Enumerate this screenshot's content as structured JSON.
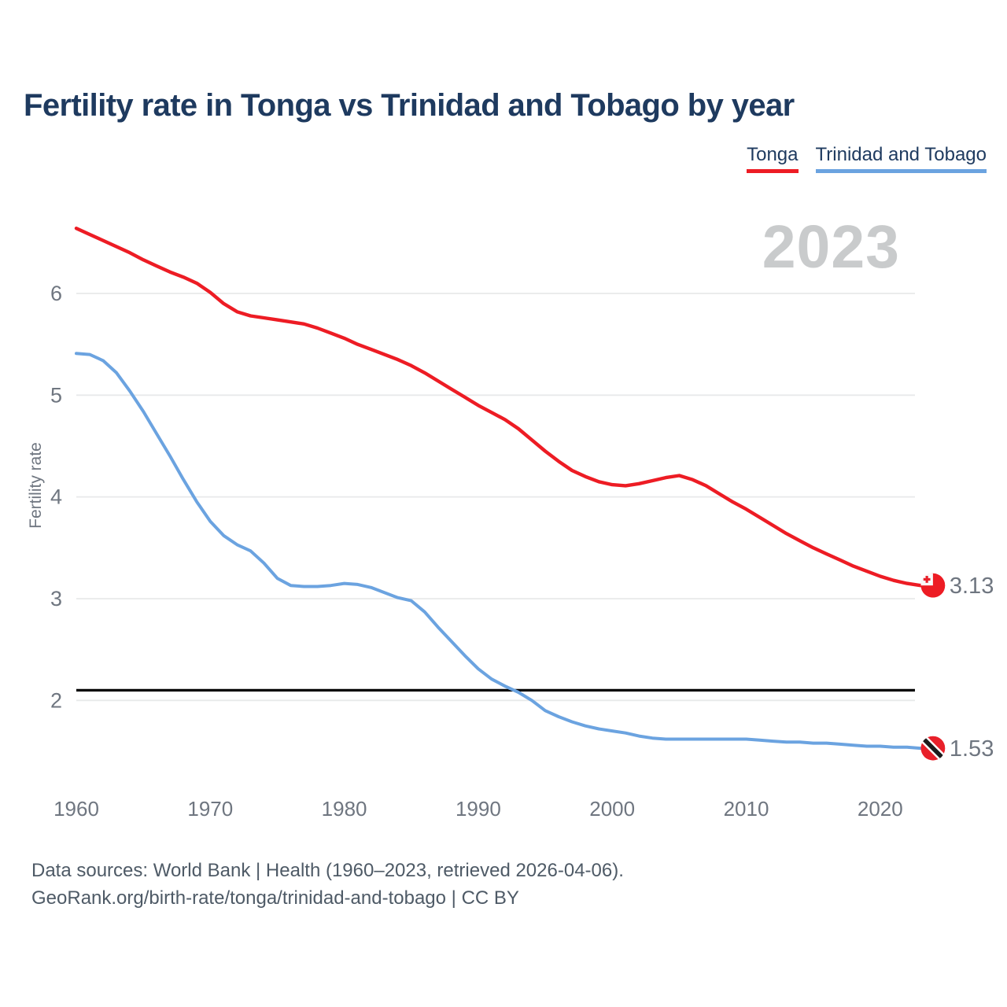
{
  "title": "Fertility rate in Tonga vs Trinidad and Tobago by year",
  "watermark": "2023",
  "legend": [
    {
      "label": "Tonga",
      "color": "#ed1c24"
    },
    {
      "label": "Trinidad and Tobago",
      "color": "#6ba3e0"
    }
  ],
  "y_axis": {
    "label": "Fertility rate",
    "ticks": [
      6,
      5,
      4,
      3,
      2
    ]
  },
  "x_axis": {
    "ticks": [
      1960,
      1970,
      1980,
      1990,
      2000,
      2010,
      2020
    ]
  },
  "reference_line": {
    "value": 2.1,
    "color": "#000000"
  },
  "end_labels": [
    {
      "series": "Tonga",
      "text": "3.13",
      "color": "#ed1c24"
    },
    {
      "series": "Trinidad and Tobago",
      "text": "1.53",
      "color": "#6ba3e0"
    }
  ],
  "footer": {
    "line1": "Data sources: World Bank | Health (1960–2023, retrieved 2026-04-06).",
    "line2": "GeoRank.org/birth-rate/tonga/trinidad-and-tobago | CC BY"
  },
  "chart_data": {
    "type": "line",
    "title": "Fertility rate in Tonga vs Trinidad and Tobago by year",
    "xlabel": "",
    "ylabel": "Fertility rate",
    "xlim": [
      1960,
      2023
    ],
    "ylim": [
      1.05,
      6.95
    ],
    "grid": "horizontal",
    "legend_position": "top-right",
    "annotations": {
      "year_watermark": "2023",
      "replacement_fertility_line": 2.1
    },
    "x": [
      1960,
      1961,
      1962,
      1963,
      1964,
      1965,
      1966,
      1967,
      1968,
      1969,
      1970,
      1971,
      1972,
      1973,
      1974,
      1975,
      1976,
      1977,
      1978,
      1979,
      1980,
      1981,
      1982,
      1983,
      1984,
      1985,
      1986,
      1987,
      1988,
      1989,
      1990,
      1991,
      1992,
      1993,
      1994,
      1995,
      1996,
      1997,
      1998,
      1999,
      2000,
      2001,
      2002,
      2003,
      2004,
      2005,
      2006,
      2007,
      2008,
      2009,
      2010,
      2011,
      2012,
      2013,
      2014,
      2015,
      2016,
      2017,
      2018,
      2019,
      2020,
      2021,
      2022,
      2023
    ],
    "series": [
      {
        "name": "Tonga",
        "color": "#ed1c24",
        "values": [
          6.64,
          6.58,
          6.52,
          6.46,
          6.4,
          6.33,
          6.27,
          6.21,
          6.16,
          6.1,
          6.01,
          5.9,
          5.82,
          5.78,
          5.76,
          5.74,
          5.72,
          5.7,
          5.66,
          5.61,
          5.56,
          5.5,
          5.45,
          5.4,
          5.35,
          5.29,
          5.22,
          5.14,
          5.06,
          4.98,
          4.9,
          4.83,
          4.76,
          4.67,
          4.56,
          4.45,
          4.35,
          4.26,
          4.2,
          4.15,
          4.12,
          4.11,
          4.13,
          4.16,
          4.19,
          4.21,
          4.17,
          4.11,
          4.03,
          3.95,
          3.88,
          3.8,
          3.72,
          3.64,
          3.57,
          3.5,
          3.44,
          3.38,
          3.32,
          3.27,
          3.22,
          3.18,
          3.15,
          3.13
        ]
      },
      {
        "name": "Trinidad and Tobago",
        "color": "#6ba3e0",
        "values": [
          5.41,
          5.4,
          5.34,
          5.22,
          5.04,
          4.84,
          4.62,
          4.4,
          4.17,
          3.95,
          3.76,
          3.62,
          3.53,
          3.47,
          3.35,
          3.2,
          3.13,
          3.12,
          3.12,
          3.13,
          3.15,
          3.14,
          3.11,
          3.06,
          3.01,
          2.98,
          2.87,
          2.72,
          2.58,
          2.44,
          2.31,
          2.21,
          2.14,
          2.08,
          2.0,
          1.9,
          1.84,
          1.79,
          1.75,
          1.72,
          1.7,
          1.68,
          1.65,
          1.63,
          1.62,
          1.62,
          1.62,
          1.62,
          1.62,
          1.62,
          1.62,
          1.61,
          1.6,
          1.59,
          1.59,
          1.58,
          1.58,
          1.57,
          1.56,
          1.55,
          1.55,
          1.54,
          1.54,
          1.53
        ]
      }
    ]
  }
}
